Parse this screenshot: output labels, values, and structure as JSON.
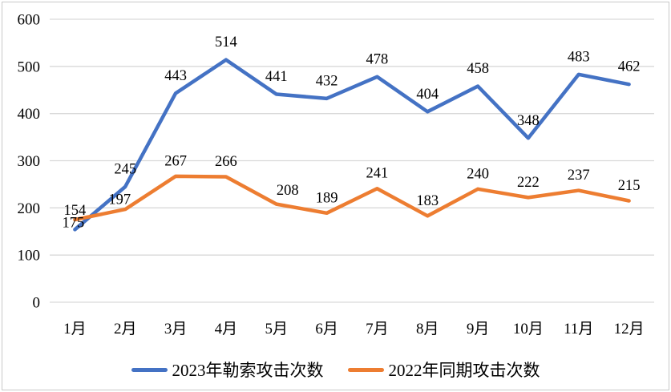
{
  "chart": {
    "title": "",
    "y_axis_ticks": [
      "0",
      "100",
      "200",
      "300",
      "400",
      "500",
      "600"
    ],
    "legend": [
      {
        "label": "2023年勒索攻击次数",
        "color": "#4472C4"
      },
      {
        "label": "2022年同期攻击次数",
        "color": "#ED7D31"
      }
    ]
  },
  "chart_data": {
    "type": "line",
    "title": "",
    "xlabel": "",
    "ylabel": "",
    "categories": [
      "1月",
      "2月",
      "3月",
      "4月",
      "5月",
      "6月",
      "7月",
      "8月",
      "9月",
      "10月",
      "11月",
      "12月"
    ],
    "series": [
      {
        "name": "2023年勒索攻击次数",
        "color": "#4472C4",
        "values": [
          154,
          245,
          443,
          514,
          441,
          432,
          478,
          404,
          458,
          348,
          483,
          462
        ]
      },
      {
        "name": "2022年同期攻击次数",
        "color": "#ED7D31",
        "values": [
          175,
          197,
          267,
          266,
          208,
          189,
          241,
          183,
          240,
          222,
          237,
          215
        ]
      }
    ],
    "ylim": [
      0,
      600
    ],
    "ytick_step": 100,
    "grid": "horizontal",
    "gridline_color": "#D9D9D9",
    "data_labels": true,
    "legend_position": "bottom"
  },
  "colors": {
    "background": "#FFFFFF",
    "frame_border": "#C9C9C9",
    "text": "#000000"
  }
}
